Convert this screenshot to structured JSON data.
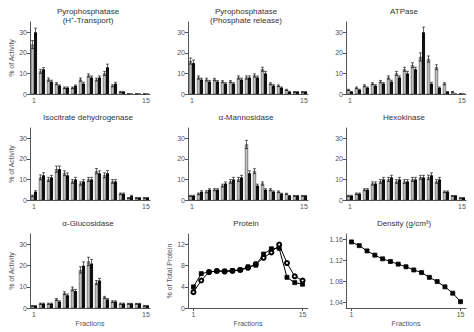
{
  "chart_data": [
    {
      "type": "bar",
      "title": "Pyrophosphatase\n(H⁺-Transport)",
      "ylabel": "% of Activity",
      "categories": [
        "1",
        null,
        null,
        null,
        null,
        null,
        null,
        null,
        null,
        null,
        null,
        null,
        null,
        null,
        "15"
      ],
      "series": [
        {
          "color": "#c0c0c0",
          "values": [
            24,
            11,
            7,
            5,
            3,
            3,
            7,
            9,
            7,
            10,
            4,
            1,
            0,
            0,
            0
          ],
          "errors": [
            2,
            1,
            0.8,
            0.5,
            0.4,
            0.4,
            0.8,
            0.8,
            0.7,
            1,
            0.5,
            0.3,
            0,
            0,
            0
          ]
        },
        {
          "color": "#111111",
          "values": [
            30,
            12,
            6,
            4,
            3,
            4,
            5,
            8,
            8,
            13,
            5,
            1,
            0,
            0,
            0
          ],
          "errors": [
            2,
            0.8,
            0.7,
            0.4,
            0.4,
            0.4,
            0.7,
            0.8,
            0.8,
            1.5,
            0.7,
            0.3,
            0,
            0,
            0
          ]
        }
      ],
      "ylim": [
        0,
        35
      ],
      "yticks": [
        0,
        10,
        20,
        30
      ],
      "grid": false
    },
    {
      "type": "bar",
      "title": "Pyrophosphatase\n(Phosphate release)",
      "categories": [
        "1",
        null,
        null,
        null,
        null,
        null,
        null,
        null,
        null,
        null,
        null,
        null,
        null,
        null,
        "15"
      ],
      "series": [
        {
          "color": "#c0c0c0",
          "values": [
            16,
            8,
            7,
            7,
            6,
            6,
            8,
            8,
            9,
            12,
            5,
            4,
            2,
            1,
            1
          ],
          "errors": [
            1.5,
            0.8,
            0.7,
            0.6,
            0.5,
            0.5,
            0.8,
            0.8,
            0.8,
            1,
            0.5,
            0.4,
            0.3,
            0.2,
            0.2
          ]
        },
        {
          "color": "#111111",
          "values": [
            15,
            7,
            6,
            6,
            5,
            5,
            7,
            8,
            8,
            10,
            4,
            3,
            1,
            1,
            1
          ],
          "errors": [
            1.5,
            0.7,
            0.6,
            0.5,
            0.5,
            0.5,
            0.7,
            0.8,
            0.7,
            1,
            0.5,
            0.4,
            0.3,
            0.2,
            0.2
          ]
        }
      ],
      "ylim": [
        0,
        35
      ],
      "yticks": [
        0,
        10,
        20,
        30
      ],
      "grid": false
    },
    {
      "type": "bar",
      "title": "ATPase",
      "categories": [
        "1",
        null,
        null,
        null,
        null,
        null,
        null,
        null,
        null,
        null,
        null,
        null,
        null,
        null,
        "15"
      ],
      "series": [
        {
          "color": "#c0c0c0",
          "values": [
            2,
            3,
            4,
            5,
            6,
            8,
            10,
            12,
            14,
            18,
            17,
            13,
            5,
            1,
            0
          ],
          "errors": [
            0.3,
            0.4,
            0.5,
            0.5,
            0.6,
            0.8,
            1,
            1,
            1.2,
            2,
            1.5,
            1.2,
            0.5,
            0.2,
            0
          ]
        },
        {
          "color": "#111111",
          "values": [
            1,
            2,
            3,
            4,
            5,
            6,
            8,
            10,
            12,
            30,
            5,
            3,
            1,
            0,
            0
          ],
          "errors": [
            0.2,
            0.3,
            0.4,
            0.5,
            0.5,
            0.7,
            0.8,
            1,
            1,
            2.5,
            0.7,
            0.4,
            0.2,
            0.1,
            0
          ]
        }
      ],
      "ylim": [
        0,
        35
      ],
      "yticks": [
        0,
        10,
        20,
        30
      ],
      "grid": false
    },
    {
      "type": "bar",
      "title": "Isocitrate dehydrogenase",
      "ylabel": "% of Activity",
      "categories": [
        "1",
        null,
        null,
        null,
        null,
        null,
        null,
        null,
        null,
        null,
        null,
        null,
        null,
        null,
        "15"
      ],
      "series": [
        {
          "color": "#c0c0c0",
          "values": [
            2,
            11,
            10,
            15,
            13,
            9,
            8,
            10,
            14,
            12,
            9,
            3,
            1,
            1,
            1
          ],
          "errors": [
            0.4,
            1.2,
            1,
            1.5,
            1.2,
            0.9,
            0.8,
            1,
            1.3,
            1.2,
            0.9,
            0.4,
            0.2,
            0.2,
            0.2
          ]
        },
        {
          "color": "#111111",
          "values": [
            4,
            12,
            11,
            15,
            12,
            10,
            9,
            10,
            13,
            13,
            9,
            3,
            2,
            1,
            1
          ],
          "errors": [
            0.5,
            1.3,
            1,
            1.5,
            1.2,
            1,
            0.9,
            1,
            1.2,
            1.3,
            0.9,
            0.4,
            0.3,
            0.2,
            0.2
          ]
        }
      ],
      "ylim": [
        0,
        35
      ],
      "yticks": [
        0,
        10,
        20,
        30
      ],
      "grid": false
    },
    {
      "type": "bar",
      "title": "α-Mannosidase",
      "categories": [
        "1",
        null,
        null,
        null,
        null,
        null,
        null,
        null,
        null,
        null,
        null,
        null,
        null,
        null,
        "15"
      ],
      "series": [
        {
          "color": "#c0c0c0",
          "values": [
            2,
            3,
            4,
            5,
            7,
            9,
            10,
            27,
            14,
            8,
            5,
            4,
            3,
            2,
            2
          ],
          "errors": [
            0.3,
            0.4,
            0.5,
            0.5,
            0.7,
            0.9,
            1,
            2,
            1.2,
            0.8,
            0.5,
            0.4,
            0.3,
            0.2,
            0.2
          ]
        },
        {
          "color": "#111111",
          "values": [
            2,
            4,
            5,
            5,
            8,
            10,
            11,
            13,
            7,
            5,
            4,
            3,
            2,
            2,
            2
          ],
          "errors": [
            0.3,
            0.5,
            0.5,
            0.5,
            0.8,
            1,
            1,
            1.2,
            0.7,
            0.5,
            0.4,
            0.3,
            0.2,
            0.2,
            0.2
          ]
        }
      ],
      "ylim": [
        0,
        35
      ],
      "yticks": [
        0,
        10,
        20,
        30
      ],
      "grid": false
    },
    {
      "type": "bar",
      "title": "Hexokinase",
      "categories": [
        "1",
        null,
        null,
        null,
        null,
        null,
        null,
        null,
        null,
        null,
        null,
        null,
        null,
        null,
        "15"
      ],
      "series": [
        {
          "color": "#c0c0c0",
          "values": [
            2,
            3,
            5,
            8,
            9,
            10,
            9,
            9,
            10,
            11,
            11,
            9,
            4,
            2,
            1
          ],
          "errors": [
            0.3,
            0.4,
            0.5,
            0.8,
            0.9,
            1,
            0.9,
            0.9,
            1,
            1,
            1.1,
            0.9,
            0.4,
            0.2,
            0.2
          ]
        },
        {
          "color": "#111111",
          "values": [
            2,
            3,
            5,
            8,
            10,
            11,
            10,
            9,
            10,
            11,
            12,
            10,
            4,
            2,
            1
          ],
          "errors": [
            0.3,
            0.4,
            0.5,
            0.8,
            1,
            1,
            1,
            0.9,
            1,
            1,
            1.2,
            1,
            0.4,
            0.2,
            0.2
          ]
        }
      ],
      "ylim": [
        0,
        35
      ],
      "yticks": [
        0,
        10,
        20,
        30
      ],
      "grid": false
    },
    {
      "type": "bar",
      "title": "α-Glucosidase",
      "ylabel": "% of Activity",
      "xlabel": "Fractions",
      "categories": [
        "1",
        null,
        null,
        null,
        null,
        null,
        null,
        null,
        null,
        null,
        null,
        null,
        null,
        null,
        "15"
      ],
      "series": [
        {
          "color": "#c0c0c0",
          "values": [
            1,
            2,
            2,
            4,
            7,
            9,
            18,
            22,
            12,
            5,
            3,
            2,
            2,
            2,
            1
          ],
          "errors": [
            0.2,
            0.3,
            0.3,
            0.5,
            0.7,
            0.9,
            1.5,
            2,
            1,
            0.5,
            0.4,
            0.3,
            0.2,
            0.2,
            0.2
          ]
        },
        {
          "color": "#111111",
          "values": [
            1,
            2,
            2,
            3,
            6,
            8,
            20,
            21,
            13,
            4,
            3,
            2,
            2,
            2,
            1
          ],
          "errors": [
            0.2,
            0.3,
            0.3,
            0.4,
            0.6,
            0.8,
            1.8,
            2,
            1,
            0.5,
            0.4,
            0.3,
            0.2,
            0.2,
            0.2
          ]
        }
      ],
      "ylim": [
        0,
        35
      ],
      "yticks": [
        0,
        10,
        20,
        30
      ],
      "grid": false
    },
    {
      "type": "line",
      "title": "Protein",
      "ylabel": "% of Total Protein",
      "xlabel": "Fractions",
      "x": [
        1,
        2,
        3,
        4,
        5,
        6,
        7,
        8,
        9,
        10,
        11,
        12,
        13,
        14,
        15
      ],
      "series": [
        {
          "color": "#000000",
          "marker": "open_circle",
          "values": [
            3.0,
            5.2,
            6.8,
            7.0,
            6.9,
            7.0,
            7.2,
            7.6,
            8.3,
            9.5,
            10.5,
            12.0,
            8.5,
            6.0,
            5.2
          ]
        },
        {
          "color": "#000000",
          "marker": "square",
          "values": [
            4.0,
            6.5,
            6.8,
            7.0,
            7.0,
            7.1,
            7.2,
            7.8,
            8.1,
            10.2,
            11.2,
            11.3,
            5.8,
            4.8,
            4.5
          ]
        }
      ],
      "xlim": [
        0.3,
        15.7
      ],
      "xticks": [
        1,
        15
      ],
      "ylim": [
        0,
        14
      ],
      "yticks": [
        0,
        4,
        8,
        12
      ],
      "grid": false
    },
    {
      "type": "line",
      "title": "Density (g/cm³)",
      "xlabel": "Fractions",
      "x": [
        1,
        2,
        3,
        4,
        5,
        6,
        7,
        8,
        9,
        10,
        11,
        12,
        13,
        14,
        15
      ],
      "series": [
        {
          "color": "#000000",
          "marker": "square",
          "values": [
            1.155,
            1.148,
            1.138,
            1.13,
            1.123,
            1.118,
            1.113,
            1.108,
            1.102,
            1.097,
            1.088,
            1.08,
            1.07,
            1.058,
            1.042
          ]
        }
      ],
      "xlim": [
        0.3,
        15.7
      ],
      "xticks": [
        1,
        15
      ],
      "ylim": [
        1.03,
        1.17
      ],
      "yticks": [
        1.04,
        1.08,
        1.12,
        1.16
      ],
      "grid": false
    }
  ]
}
